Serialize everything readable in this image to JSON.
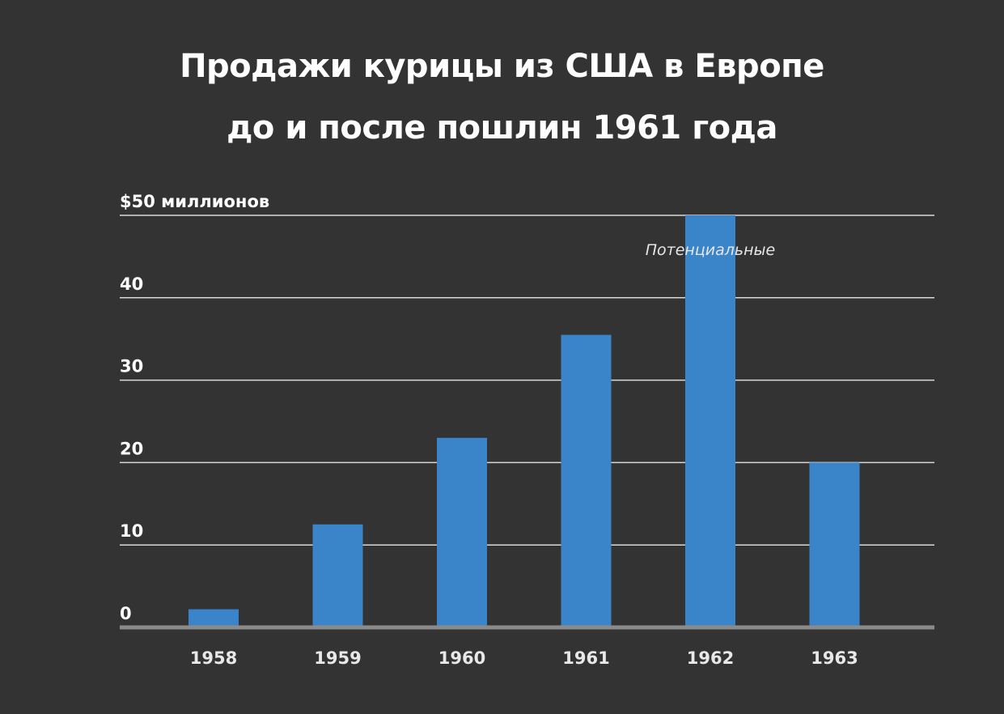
{
  "chart_data": {
    "type": "bar",
    "title": "Продажи курицы из США в Европе до и после пошлин 1961 года",
    "title_lines": [
      "Продажи курицы из США в Европе",
      "до и после пошлин 1961 года"
    ],
    "categories": [
      "1958",
      "1959",
      "1960",
      "1961",
      "1962",
      "1963"
    ],
    "values": [
      2.2,
      12.5,
      23,
      35.5,
      50,
      20
    ],
    "ylim": [
      0,
      50
    ],
    "y_ticks": [
      {
        "value": 0,
        "label": "0"
      },
      {
        "value": 10,
        "label": "10"
      },
      {
        "value": 20,
        "label": "20"
      },
      {
        "value": 30,
        "label": "30"
      },
      {
        "value": 40,
        "label": "40"
      },
      {
        "value": 50,
        "label": "$50 миллионов"
      }
    ],
    "annotation": {
      "text": "Потенциальные",
      "category": "1962"
    },
    "grid": true,
    "legend": "none",
    "colors": {
      "background": "#333334",
      "bar": "#3a84c9",
      "gridline": "#d9d9d9",
      "baseline": "#8a8a8a",
      "text": "#ffffff"
    }
  }
}
